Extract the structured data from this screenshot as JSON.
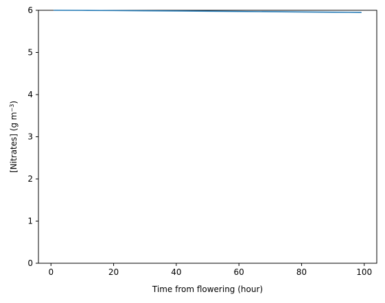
{
  "chart_data": {
    "type": "line",
    "title": "",
    "xlabel": "Time from flowering (hour)",
    "ylabel": {
      "main": "[Nitrates] (g m",
      "exponent": "−3",
      "close": ")"
    },
    "xlim": [
      -4,
      104
    ],
    "ylim": [
      0,
      6
    ],
    "x_ticks": [
      0,
      20,
      40,
      60,
      80,
      100
    ],
    "y_ticks": [
      0,
      1,
      2,
      3,
      4,
      5,
      6
    ],
    "grid": false,
    "legend": "none",
    "series": [
      {
        "color": "#1f77b4",
        "x": [
          1,
          10,
          20,
          30,
          40,
          50,
          60,
          70,
          80,
          90,
          99
        ],
        "y": [
          6.0,
          5.998,
          5.994,
          5.989,
          5.984,
          5.978,
          5.972,
          5.966,
          5.96,
          5.954,
          5.949
        ]
      }
    ]
  },
  "style": {
    "axis_color": "#000000",
    "series_color": "#1f77b4"
  }
}
